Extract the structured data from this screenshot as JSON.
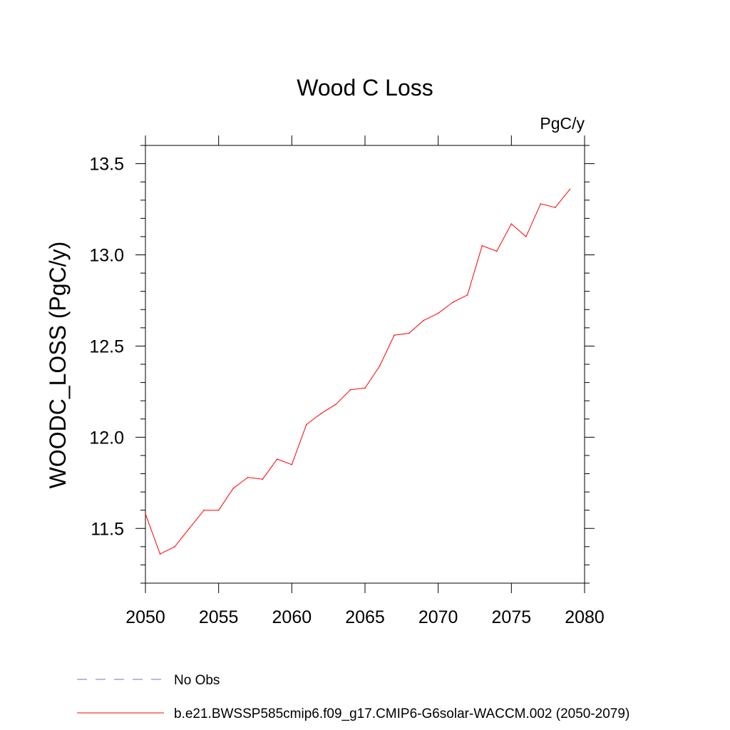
{
  "chart_data": {
    "type": "line",
    "title": "Wood C Loss",
    "units_label": "PgC/y",
    "ylabel": "WOODC_LOSS  (PgC/y)",
    "xlabel": "",
    "xlim": [
      2050,
      2080
    ],
    "ylim": [
      11.2,
      13.6
    ],
    "x_ticks": [
      2050,
      2055,
      2060,
      2065,
      2070,
      2075,
      2080
    ],
    "x_tick_labels": [
      "2050",
      "2055",
      "2060",
      "2065",
      "2070",
      "2075",
      "2080"
    ],
    "y_ticks": [
      11.5,
      12.0,
      12.5,
      13.0,
      13.5
    ],
    "y_tick_labels": [
      "11.5",
      "12.0",
      "12.5",
      "13.0",
      "13.5"
    ],
    "grid": false,
    "legend_position": "bottom",
    "series": [
      {
        "name": "b.e21.BWSSP585cmip6.f09_g17.CMIP6-G6solar-WACCM.002 (2050-2079)",
        "color": "#ff0000",
        "style": "solid",
        "x": [
          2050,
          2051,
          2052,
          2053,
          2054,
          2055,
          2056,
          2057,
          2058,
          2059,
          2060,
          2061,
          2062,
          2063,
          2064,
          2065,
          2066,
          2067,
          2068,
          2069,
          2070,
          2071,
          2072,
          2073,
          2074,
          2075,
          2076,
          2077,
          2078,
          2079
        ],
        "values": [
          11.58,
          11.36,
          11.4,
          11.5,
          11.6,
          11.6,
          11.72,
          11.78,
          11.77,
          11.88,
          11.85,
          12.07,
          12.13,
          12.18,
          12.26,
          12.27,
          12.39,
          12.56,
          12.57,
          12.64,
          12.68,
          12.74,
          12.78,
          13.05,
          13.02,
          13.17,
          13.1,
          13.28,
          13.26,
          13.36
        ]
      }
    ],
    "legend": [
      {
        "label": "No Obs",
        "color": "#7f70b0",
        "style": "dashed"
      },
      {
        "label": "b.e21.BWSSP585cmip6.f09_g17.CMIP6-G6solar-WACCM.002 (2050-2079)",
        "color": "#ff0000",
        "style": "solid"
      }
    ]
  }
}
